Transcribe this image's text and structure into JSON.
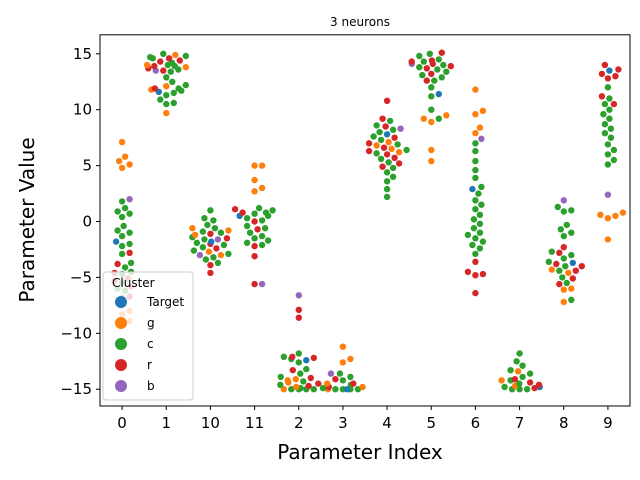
{
  "chart_data": {
    "type": "scatter",
    "subtype": "swarm",
    "title": "3 neurons",
    "xlabel": "Parameter Index",
    "ylabel": "Parameter Value",
    "categories": [
      "0",
      "1",
      "10",
      "11",
      "2",
      "3",
      "4",
      "5",
      "6",
      "7",
      "8",
      "9"
    ],
    "ylim": [
      -16.5,
      16.7
    ],
    "yticks": [
      -15,
      -10,
      -5,
      0,
      5,
      10,
      15
    ],
    "grid": false,
    "legend": {
      "title": "Cluster",
      "placement": "lower-left",
      "entries": [
        "Target",
        "g",
        "c",
        "r",
        "b"
      ]
    },
    "colors": {
      "Target": "#1f77b4",
      "g": "#ff7f0e",
      "c": "#2ca02c",
      "r": "#d62728",
      "b": "#9467bd"
    },
    "series": [
      {
        "name": "Target",
        "values": [
          {
            "category": "0",
            "y": -1.8
          },
          {
            "category": "1",
            "y": 11.6
          },
          {
            "category": "10",
            "y": -1.8
          },
          {
            "category": "11",
            "y": 0.5
          },
          {
            "category": "2",
            "y": -12.4
          },
          {
            "category": "3",
            "y": -15
          },
          {
            "category": "4",
            "y": 7.8
          },
          {
            "category": "5",
            "y": 11.4
          },
          {
            "category": "6",
            "y": 2.9
          },
          {
            "category": "7",
            "y": -14.8
          },
          {
            "category": "8",
            "y": -3.7
          },
          {
            "category": "9",
            "y": 13.5
          }
        ]
      },
      {
        "name": "g",
        "values": [
          {
            "category": "0",
            "y": [
              7.1,
              5.8,
              5.4,
              5.1,
              4.8,
              -8.0,
              -8.3,
              -8.9,
              -9.0
            ]
          },
          {
            "category": "1",
            "y": [
              14.9,
              14.0,
              13.8,
              12.1,
              11.8,
              9.7
            ]
          },
          {
            "category": "10",
            "y": [
              -0.6,
              -0.8,
              -1.2,
              -2.7,
              -3.0
            ]
          },
          {
            "category": "11",
            "y": [
              5.0,
              5.0,
              3.7,
              3.0,
              2.7
            ]
          },
          {
            "category": "2",
            "y": [
              -14.1,
              -14.2,
              -14.4,
              -14.8,
              -15.0
            ]
          },
          {
            "category": "3",
            "y": [
              -11.2,
              -12.3,
              -12.6,
              -14.5,
              -14.8,
              -15.0
            ]
          },
          {
            "category": "4",
            "y": [
              7.1,
              6.8,
              6.5,
              6.2
            ]
          },
          {
            "category": "5",
            "y": [
              9.5,
              9.2,
              8.9,
              6.4,
              5.4
            ]
          },
          {
            "category": "6",
            "y": [
              11.8,
              9.9,
              9.6,
              8.4,
              7.9
            ]
          },
          {
            "category": "7",
            "y": [
              -13.4,
              -14.2,
              -14.7
            ]
          },
          {
            "category": "8",
            "y": [
              -4.3,
              -4.6,
              -6.0,
              -6.1,
              -7.2
            ]
          },
          {
            "category": "9",
            "y": [
              0.8,
              0.5,
              0.3,
              0.6,
              -1.6
            ]
          }
        ]
      },
      {
        "name": "c",
        "values": [
          {
            "category": "0",
            "y": [
              1.8,
              1.2,
              0.9,
              0.7,
              0.4,
              -0.4,
              -0.8,
              -1.0,
              -1.3,
              -2.0,
              -2.2,
              -2.9,
              -3.7,
              -4.1,
              -4.5,
              -4.7,
              -5.5,
              -6.0,
              -6.2
            ]
          },
          {
            "category": "1",
            "y": [
              15.0,
              14.8,
              14.7,
              14.6,
              14.2,
              14.0,
              13.9,
              13.6,
              13.4,
              12.9,
              12.5,
              12.2,
              11.9,
              11.7,
              11.5,
              11.3,
              10.9,
              10.6,
              10.5
            ]
          },
          {
            "category": "10",
            "y": [
              1.0,
              0.3,
              0.1,
              -0.3,
              -0.6,
              -0.9,
              -1.0,
              -1.4,
              -1.6,
              -1.9,
              -2.1,
              -2.3,
              -2.6,
              -2.9,
              -3.2,
              -3.4,
              -3.7
            ]
          },
          {
            "category": "11",
            "y": [
              1.2,
              1.0,
              0.8,
              0.7,
              0.5,
              0.3,
              0.1,
              -0.4,
              -0.6,
              -1.0,
              -1.3,
              -1.5,
              -1.7,
              -1.9,
              -2.1
            ]
          },
          {
            "category": "2",
            "y": [
              -11.8,
              -12.1,
              -12.3,
              -12.6,
              -13.2,
              -13.6,
              -13.9,
              -14.3,
              -14.6,
              -14.9,
              -15.0,
              -15.0,
              -15.0,
              -15.0
            ]
          },
          {
            "category": "3",
            "y": [
              -13.6,
              -13.9,
              -14.2,
              -14.6,
              -14.9,
              -15.0,
              -15.0,
              -15.0,
              -15.0
            ]
          },
          {
            "category": "4",
            "y": [
              9.0,
              8.6,
              8.2,
              8.0,
              7.6,
              7.3,
              6.9,
              6.4,
              6.1,
              5.6,
              5.3,
              4.8,
              4.4,
              4.0,
              3.6,
              2.9,
              2.2
            ]
          },
          {
            "category": "5",
            "y": [
              15.0,
              14.8,
              14.5,
              14.3,
              14.0,
              13.8,
              13.6,
              13.4,
              13.1,
              12.9,
              12.6,
              12.0,
              11.2,
              10.0,
              9.2
            ]
          },
          {
            "category": "6",
            "y": [
              7.0,
              6.3,
              5.4,
              4.6,
              3.9,
              3.1,
              2.5,
              1.9,
              1.5,
              1.1,
              0.6,
              0.2,
              -0.2,
              -0.6,
              -1.0,
              -1.2,
              -1.5,
              -1.8,
              -2.1,
              -2.4,
              -2.9
            ]
          },
          {
            "category": "7",
            "y": [
              -11.8,
              -12.5,
              -12.9,
              -13.3,
              -13.6,
              -13.9,
              -14.2,
              -14.5,
              -14.8,
              -15.0,
              -15.0,
              -15.0
            ]
          },
          {
            "category": "8",
            "y": [
              1.3,
              1.0,
              0.9,
              -0.3,
              -0.7,
              -1.0,
              -1.3,
              -2.7,
              -3.0,
              -3.3,
              -3.6,
              -4.0,
              -4.4,
              -5.0,
              -5.5,
              -7.0
            ]
          },
          {
            "category": "9",
            "y": [
              12.0,
              11.0,
              10.5,
              10.0,
              9.6,
              9.2,
              8.7,
              8.3,
              7.9,
              7.5,
              6.9,
              6.4,
              6.0,
              5.5,
              5.1
            ]
          }
        ]
      },
      {
        "name": "r",
        "values": [
          {
            "category": "0",
            "y": [
              -2.8,
              -3.8,
              -4.6,
              -5.1,
              -5.3,
              -5.8,
              -6.7
            ]
          },
          {
            "category": "1",
            "y": [
              14.6,
              14.4,
              14.3,
              13.9,
              13.7,
              13.5,
              11.9
            ]
          },
          {
            "category": "10",
            "y": [
              -1.1,
              -1.5,
              -2.0,
              -2.4,
              -3.9,
              -4.6
            ]
          },
          {
            "category": "11",
            "y": [
              1.1,
              0.8,
              0.0,
              -0.7,
              -2.2,
              -3.1,
              -5.6
            ]
          },
          {
            "category": "2",
            "y": [
              -7.9,
              -8.6,
              -12.1,
              -12.2,
              -13.3,
              -14.0,
              -14.5,
              -14.7
            ]
          },
          {
            "category": "3",
            "y": [
              -14.1,
              -14.5,
              -14.8
            ]
          },
          {
            "category": "4",
            "y": [
              10.8,
              9.2,
              8.5,
              7.5,
              7.0,
              6.6,
              6.3,
              6.0,
              5.7,
              5.2,
              4.9
            ]
          },
          {
            "category": "5",
            "y": [
              15.1,
              14.4,
              14.3,
              14.1,
              13.9,
              13.7,
              13.2,
              12.6
            ]
          },
          {
            "category": "6",
            "y": [
              -3.6,
              -4.5,
              -4.7,
              -4.8,
              -6.4
            ]
          },
          {
            "category": "7",
            "y": [
              -14.1,
              -14.4,
              -14.6,
              -14.9
            ]
          },
          {
            "category": "8",
            "y": [
              -2.3,
              -2.8,
              -3.8,
              -4.0,
              -4.4,
              -5.1,
              -5.6
            ]
          },
          {
            "category": "9",
            "y": [
              14.0,
              13.6,
              13.2,
              13.0,
              12.8,
              11.2,
              10.5
            ]
          }
        ]
      },
      {
        "name": "b",
        "values": [
          {
            "category": "0",
            "y": [
              2.0,
              -6.8
            ]
          },
          {
            "category": "1",
            "y": [
              13.5
            ]
          },
          {
            "category": "10",
            "y": [
              -1.6,
              -3.0
            ]
          },
          {
            "category": "11",
            "y": [
              -5.6
            ]
          },
          {
            "category": "2",
            "y": [
              -6.6
            ]
          },
          {
            "category": "3",
            "y": [
              -13.6
            ]
          },
          {
            "category": "4",
            "y": [
              8.3
            ]
          },
          {
            "category": "5",
            "y": [
              14.1
            ]
          },
          {
            "category": "6",
            "y": [
              7.4
            ]
          },
          {
            "category": "7",
            "y": []
          },
          {
            "category": "8",
            "y": [
              1.9
            ]
          },
          {
            "category": "9",
            "y": [
              2.4
            ]
          }
        ]
      }
    ]
  }
}
